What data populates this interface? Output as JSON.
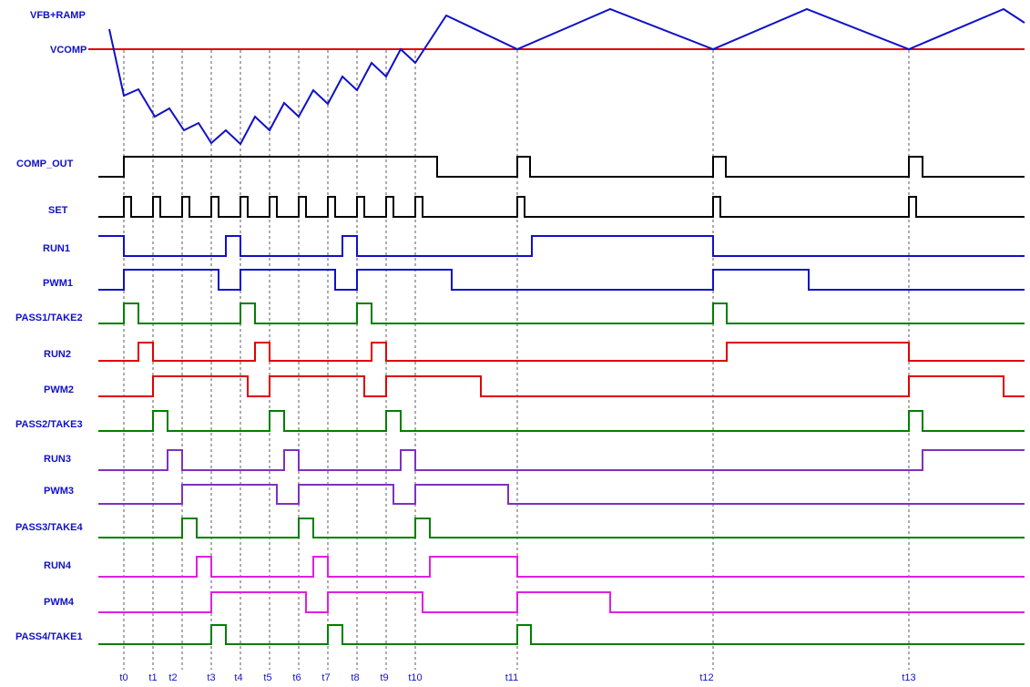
{
  "colors": {
    "blue": "#1010c8",
    "red": "#e00000",
    "black": "#000000",
    "green": "#008000",
    "purple": "#8030c0",
    "magenta": "#e020e0"
  },
  "ramp_label": "VFB+RAMP",
  "vcomp_label": "VCOMP",
  "time_markers": [
    "t0",
    "t1",
    "t2",
    "t3",
    "t4",
    "t5",
    "t6",
    "t7",
    "t8",
    "t9",
    "t10",
    "t11",
    "t12",
    "t13"
  ],
  "signals": [
    {
      "name": "COMP_OUT",
      "color": "black"
    },
    {
      "name": "SET",
      "color": "black"
    },
    {
      "name": "RUN1",
      "color": "blue"
    },
    {
      "name": "PWM1",
      "color": "blue"
    },
    {
      "name": "PASS1/TAKE2",
      "color": "green"
    },
    {
      "name": "RUN2",
      "color": "red"
    },
    {
      "name": "PWM2",
      "color": "red"
    },
    {
      "name": "PASS2/TAKE3",
      "color": "green"
    },
    {
      "name": "RUN3",
      "color": "purple"
    },
    {
      "name": "PWM3",
      "color": "purple"
    },
    {
      "name": "PASS3/TAKE4",
      "color": "green"
    },
    {
      "name": "RUN4",
      "color": "magenta"
    },
    {
      "name": "PWM4",
      "color": "magenta"
    },
    {
      "name": "PASS4/TAKE1",
      "color": "green"
    }
  ]
}
